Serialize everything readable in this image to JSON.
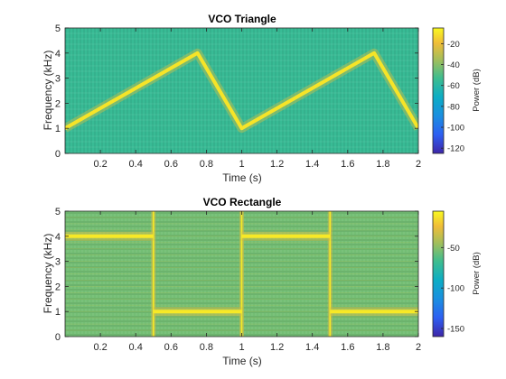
{
  "chart_data": [
    {
      "type": "heatmap",
      "title": "VCO Triangle",
      "xlabel": "Time (s)",
      "ylabel": "Frequency (kHz)",
      "xlim": [
        0,
        2
      ],
      "ylim": [
        0,
        5
      ],
      "xticks": [
        0.2,
        0.4,
        0.6,
        0.8,
        1,
        1.2,
        1.4,
        1.6,
        1.8,
        2
      ],
      "yticks": [
        0,
        1,
        2,
        3,
        4,
        5
      ],
      "colorbar": {
        "label": "Power (dB)",
        "ticks": [
          -20,
          -40,
          -60,
          -80,
          -100,
          -120
        ],
        "range": [
          -125,
          -5
        ]
      },
      "background_power_db": -55,
      "ridge_power_db": -10,
      "ridge": {
        "x": [
          0,
          0.75,
          1.0,
          1.75,
          2.0
        ],
        "y": [
          1.0,
          4.0,
          1.0,
          4.0,
          1.0
        ]
      }
    },
    {
      "type": "heatmap",
      "title": "VCO Rectangle",
      "xlabel": "Time (s)",
      "ylabel": "Frequency (kHz)",
      "xlim": [
        0,
        2
      ],
      "ylim": [
        0,
        5
      ],
      "xticks": [
        0.2,
        0.4,
        0.6,
        0.8,
        1,
        1.2,
        1.4,
        1.6,
        1.8,
        2
      ],
      "yticks": [
        0,
        1,
        2,
        3,
        4,
        5
      ],
      "colorbar": {
        "label": "Power (dB)",
        "ticks": [
          -50,
          -100,
          -150
        ],
        "range": [
          -160,
          -5
        ]
      },
      "background_power_db": -55,
      "ridge_power_db": -10,
      "segments": [
        {
          "t0": 0.0,
          "t1": 0.5,
          "f": 4.0
        },
        {
          "t0": 0.5,
          "t1": 1.0,
          "f": 1.0
        },
        {
          "t0": 1.0,
          "t1": 1.5,
          "f": 4.0
        },
        {
          "t0": 1.5,
          "t1": 2.0,
          "f": 1.0
        }
      ],
      "transitions": [
        0.5,
        1.0,
        1.5
      ]
    }
  ]
}
